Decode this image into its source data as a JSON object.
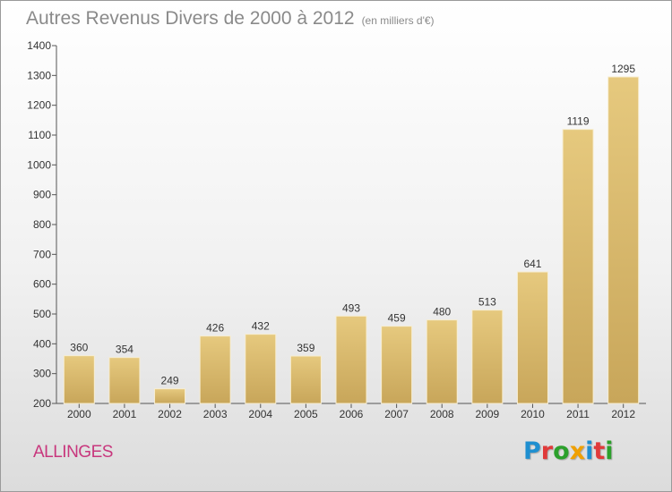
{
  "title": {
    "main": "Autres Revenus Divers de 2000 à 2012",
    "unit": "(en milliers d'€)"
  },
  "commune": "ALLINGES",
  "logo": {
    "text": "Proxiti",
    "letter_colors": [
      "#1f8fd0",
      "#e03a3a",
      "#2ca02c",
      "#f0a000",
      "#1f8fd0",
      "#e03a3a",
      "#2ca02c"
    ]
  },
  "chart_data": {
    "type": "bar",
    "categories": [
      "2000",
      "2001",
      "2002",
      "2003",
      "2004",
      "2005",
      "2006",
      "2007",
      "2008",
      "2009",
      "2010",
      "2011",
      "2012"
    ],
    "values": [
      360,
      354,
      249,
      426,
      432,
      359,
      493,
      459,
      480,
      513,
      641,
      1119,
      1295
    ],
    "title": "Autres Revenus Divers de 2000 à 2012",
    "xlabel": "",
    "ylabel": "",
    "ylim": [
      200,
      1400
    ],
    "yticks": [
      200,
      300,
      400,
      500,
      600,
      700,
      800,
      900,
      1000,
      1100,
      1200,
      1300,
      1400
    ],
    "grid": false,
    "bar_color": "#e6c97e",
    "bar_color_dark": "#c8a65a"
  }
}
